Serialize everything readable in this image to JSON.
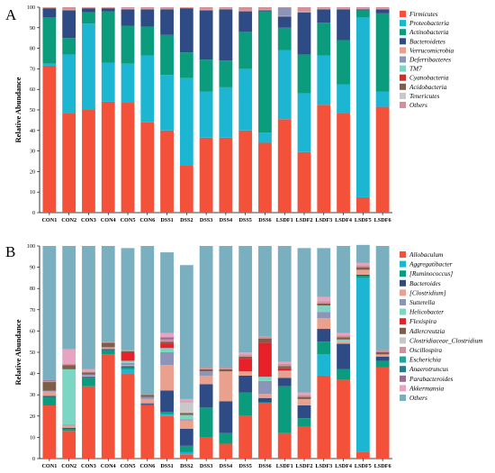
{
  "chart_data": [
    {
      "type": "bar",
      "stacked": true,
      "panel_label": "A",
      "ylabel": "Relative Abundance",
      "ylim": [
        0,
        100
      ],
      "yticks": [
        0,
        10,
        20,
        30,
        40,
        50,
        60,
        70,
        80,
        90,
        100
      ],
      "legend_position": "right",
      "categories": [
        "CON1",
        "CON2",
        "CON3",
        "CON4",
        "CON5",
        "CON6",
        "DSS1",
        "DSS2",
        "DSS3",
        "DSS4",
        "DSS5",
        "DSS6",
        "LSDF1",
        "LSDF2",
        "LSDF3",
        "LSDF4",
        "LSDF5",
        "LSDF6"
      ],
      "series": [
        {
          "name": "Firmicutes",
          "color": "#f4513b",
          "values": [
            71.5,
            48.5,
            50,
            54,
            53.5,
            44,
            40,
            23,
            36.5,
            36.5,
            40,
            34,
            45.5,
            29.5,
            52.5,
            48.5,
            7.5,
            51.5
          ]
        },
        {
          "name": "Proteobacteria",
          "color": "#1cb6d2",
          "values": [
            1,
            28.5,
            42,
            19,
            19,
            32.5,
            27,
            42.5,
            22.5,
            24.5,
            30,
            5,
            33.5,
            28.5,
            24,
            14,
            87.5,
            7.5
          ]
        },
        {
          "name": "Actinobacteria",
          "color": "#0b9c7e",
          "values": [
            22.5,
            8,
            5.5,
            25,
            18.5,
            14,
            19.5,
            12.5,
            15.5,
            13,
            18,
            59,
            11,
            19,
            16,
            21.5,
            3.5,
            38
          ]
        },
        {
          "name": "Bacteroidetes",
          "color": "#2f4b86",
          "values": [
            4.5,
            13.5,
            2,
            1.5,
            8,
            8.5,
            12.5,
            21.5,
            24,
            25,
            10,
            0.5,
            5.5,
            20.5,
            6.5,
            15,
            0.5,
            2
          ]
        },
        {
          "name": "Verrucomicrobia",
          "color": "#e9a08d",
          "values": [
            0.3,
            0.3,
            0.2,
            0.2,
            0.5,
            0.3,
            0.3,
            0.3,
            0.3,
            0.3,
            0.3,
            0.3,
            0.3,
            0.5,
            0.3,
            0.3,
            0.3,
            0.3
          ]
        },
        {
          "name": "Deferribacteres",
          "color": "#8c95b8",
          "values": [
            0,
            0,
            0,
            0,
            0,
            0,
            0.3,
            0,
            0,
            0,
            0,
            0,
            4,
            0,
            0,
            0,
            0,
            0
          ]
        },
        {
          "name": "TM7",
          "color": "#7dd6c4",
          "values": [
            0,
            0,
            0,
            0,
            0,
            0,
            0,
            0,
            0,
            0,
            0,
            0,
            0,
            0,
            0,
            0,
            0,
            0
          ]
        },
        {
          "name": "Cyanobacteria",
          "color": "#c9302c",
          "values": [
            0,
            0,
            0,
            0,
            0,
            0,
            0,
            0,
            0,
            0,
            0,
            0,
            0,
            0,
            0,
            0,
            0,
            0
          ]
        },
        {
          "name": "Acidobacteria",
          "color": "#7d5e4a",
          "values": [
            0,
            0,
            0,
            0,
            0,
            0,
            0,
            0,
            0,
            0,
            0,
            0,
            0,
            0,
            0,
            0,
            0,
            0
          ]
        },
        {
          "name": "Tenericutes",
          "color": "#c8c8c8",
          "values": [
            0,
            0,
            0,
            0,
            0,
            0,
            0,
            0,
            0,
            0,
            0,
            0,
            0,
            0,
            0,
            0,
            0,
            0
          ]
        },
        {
          "name": "Others",
          "color": "#d4909a",
          "values": [
            0.2,
            1.2,
            0.3,
            0.3,
            0.5,
            0.7,
            0.4,
            0.2,
            1.2,
            0.7,
            1.7,
            1.2,
            0.2,
            2,
            0.7,
            0.7,
            0.7,
            0.7
          ]
        }
      ]
    },
    {
      "type": "bar",
      "stacked": true,
      "panel_label": "B",
      "ylabel": "Relative Abundance",
      "ylim": [
        0,
        100
      ],
      "yticks": [
        0,
        10,
        20,
        30,
        40,
        50,
        60,
        70,
        80,
        90,
        100
      ],
      "legend_position": "right",
      "categories": [
        "CON1",
        "CON2",
        "CON3",
        "CON4",
        "CON5",
        "CON6",
        "DSS1",
        "DSS2",
        "DSS3",
        "DSS4",
        "DSS5",
        "DSS6",
        "LSDF1",
        "LSDF2",
        "LSDF3",
        "LSDF4",
        "LSDF5",
        "LSDF6"
      ],
      "series": [
        {
          "name": "Allobaculum",
          "color": "#f4513b",
          "values": [
            25,
            13,
            34,
            49,
            40,
            25,
            20,
            2,
            10,
            7,
            20,
            26,
            12,
            15,
            39,
            37,
            3,
            43
          ]
        },
        {
          "name": "Aggregatibacter",
          "color": "#1cb6d2",
          "values": [
            0,
            0,
            0,
            0,
            2,
            0,
            1,
            1,
            0,
            0,
            0,
            0,
            0,
            0,
            10,
            0,
            82,
            0
          ]
        },
        {
          "name": "[Ruminococcus]",
          "color": "#0b9c7e",
          "values": [
            4,
            1,
            4,
            2,
            1,
            0.5,
            1,
            3,
            14,
            5,
            11,
            0.5,
            22,
            4,
            6,
            5,
            1,
            3
          ]
        },
        {
          "name": "Bacteroides",
          "color": "#2f4b86",
          "values": [
            0.5,
            0.5,
            0.5,
            0.5,
            0.5,
            0.5,
            10,
            8,
            11,
            15,
            8,
            2,
            4,
            6,
            6,
            12,
            0.5,
            2
          ]
        },
        {
          "name": "[Clostridium]",
          "color": "#e9a08d",
          "values": [
            2,
            1,
            0.5,
            0.5,
            0.5,
            2,
            12,
            4,
            4,
            14,
            2,
            2,
            3,
            3,
            5,
            1,
            2,
            1
          ]
        },
        {
          "name": "Sutterella",
          "color": "#8c95b8",
          "values": [
            0.5,
            0.5,
            0.5,
            0.5,
            1,
            1,
            6,
            0.5,
            2,
            0,
            0,
            6,
            0.5,
            0,
            3,
            0,
            0.5,
            0
          ]
        },
        {
          "name": "Helicobacter",
          "color": "#7dd6c4",
          "values": [
            0,
            26,
            0,
            0,
            1,
            0,
            2,
            2,
            0,
            0,
            0,
            2,
            0,
            0,
            3,
            1,
            0,
            0
          ]
        },
        {
          "name": "Flexispira",
          "color": "#e8202a",
          "values": [
            0,
            0,
            0,
            0,
            4,
            0,
            2,
            0,
            0,
            0,
            6,
            16,
            1,
            0,
            0,
            0,
            0,
            0
          ]
        },
        {
          "name": "Adlercreutzia",
          "color": "#7d5e4a",
          "values": [
            4,
            2,
            1,
            2,
            0.5,
            1,
            1,
            1,
            1,
            1,
            1,
            2,
            1,
            1,
            1,
            1,
            1,
            1
          ]
        },
        {
          "name": "Clostridiaceae_Clostridium",
          "color": "#c8c8c8",
          "values": [
            0,
            0,
            0,
            0,
            0,
            0,
            0,
            5,
            0,
            0,
            0,
            0,
            0,
            0,
            0,
            0,
            0,
            0
          ]
        },
        {
          "name": "Oscillospira",
          "color": "#d4909a",
          "values": [
            0.5,
            0.5,
            0.5,
            0.5,
            0.5,
            0.5,
            1,
            0.5,
            1,
            1,
            1,
            1,
            1,
            1,
            1,
            1,
            1,
            1
          ]
        },
        {
          "name": "Escherichia",
          "color": "#26a39a",
          "values": [
            0,
            0,
            0,
            0,
            0,
            0,
            0,
            0,
            0,
            0,
            0,
            0,
            0,
            0,
            0,
            0,
            0,
            0
          ]
        },
        {
          "name": "Anaerotruncus",
          "color": "#2b7a86",
          "values": [
            0,
            0,
            0,
            0,
            0,
            0,
            0,
            0,
            0,
            0,
            0,
            0,
            0,
            0,
            0,
            0,
            0,
            0
          ]
        },
        {
          "name": "Parabacteroides",
          "color": "#9a6b94",
          "values": [
            0.5,
            0,
            0,
            0,
            0,
            0,
            1,
            0,
            0,
            0,
            0,
            0,
            0,
            0,
            0,
            0,
            0,
            0
          ]
        },
        {
          "name": "Akkermansia",
          "color": "#e6a3c2",
          "values": [
            0,
            7,
            1,
            0,
            0,
            0,
            2,
            1,
            0,
            0,
            1,
            0,
            1,
            1,
            2,
            1,
            1,
            0
          ]
        },
        {
          "name": "Others",
          "color": "#7aafbf",
          "values": [
            63,
            48.5,
            58,
            45,
            48,
            69.5,
            38,
            63,
            57,
            57,
            50,
            42.5,
            54.5,
            68,
            23,
            41,
            8.5,
            49
          ]
        }
      ]
    }
  ]
}
